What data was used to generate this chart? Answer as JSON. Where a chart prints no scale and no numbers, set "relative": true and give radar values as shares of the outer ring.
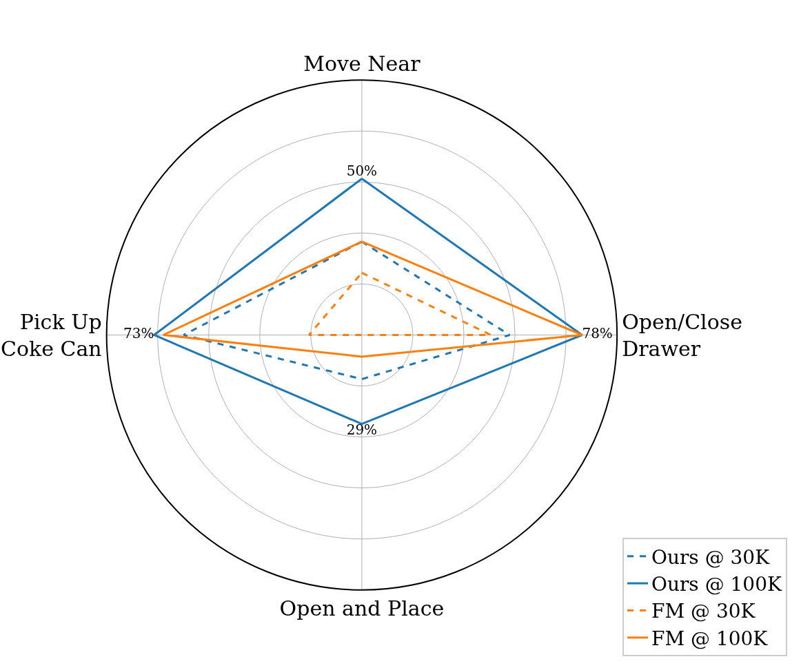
{
  "chart_data": {
    "type": "radar",
    "relative": true,
    "categories": [
      "Move Near",
      "Open/Close\nDrawer",
      "Open and Place",
      "Pick Up\nCoke Can"
    ],
    "series": [
      {
        "name": "Ours @ 30K",
        "color": "#1f77b4",
        "line_style": "dashed",
        "values": [
          0.366,
          0.579,
          0.173,
          0.698
        ]
      },
      {
        "name": "Ours @ 100K",
        "color": "#1f77b4",
        "line_style": "solid",
        "values": [
          0.613,
          0.863,
          0.349,
          0.814
        ]
      },
      {
        "name": "FM @ 30K",
        "color": "#ff7f0e",
        "line_style": "dashed",
        "values": [
          0.244,
          0.506,
          0,
          0.207
        ]
      },
      {
        "name": "FM @ 100K",
        "color": "#ff7f0e",
        "line_style": "solid",
        "values": [
          0.366,
          0.863,
          0.085,
          0.778
        ]
      }
    ],
    "annotations": [
      "50%",
      "78%",
      "29%",
      "73%"
    ],
    "grid": true,
    "legend": "bottom right",
    "marker": "none"
  }
}
